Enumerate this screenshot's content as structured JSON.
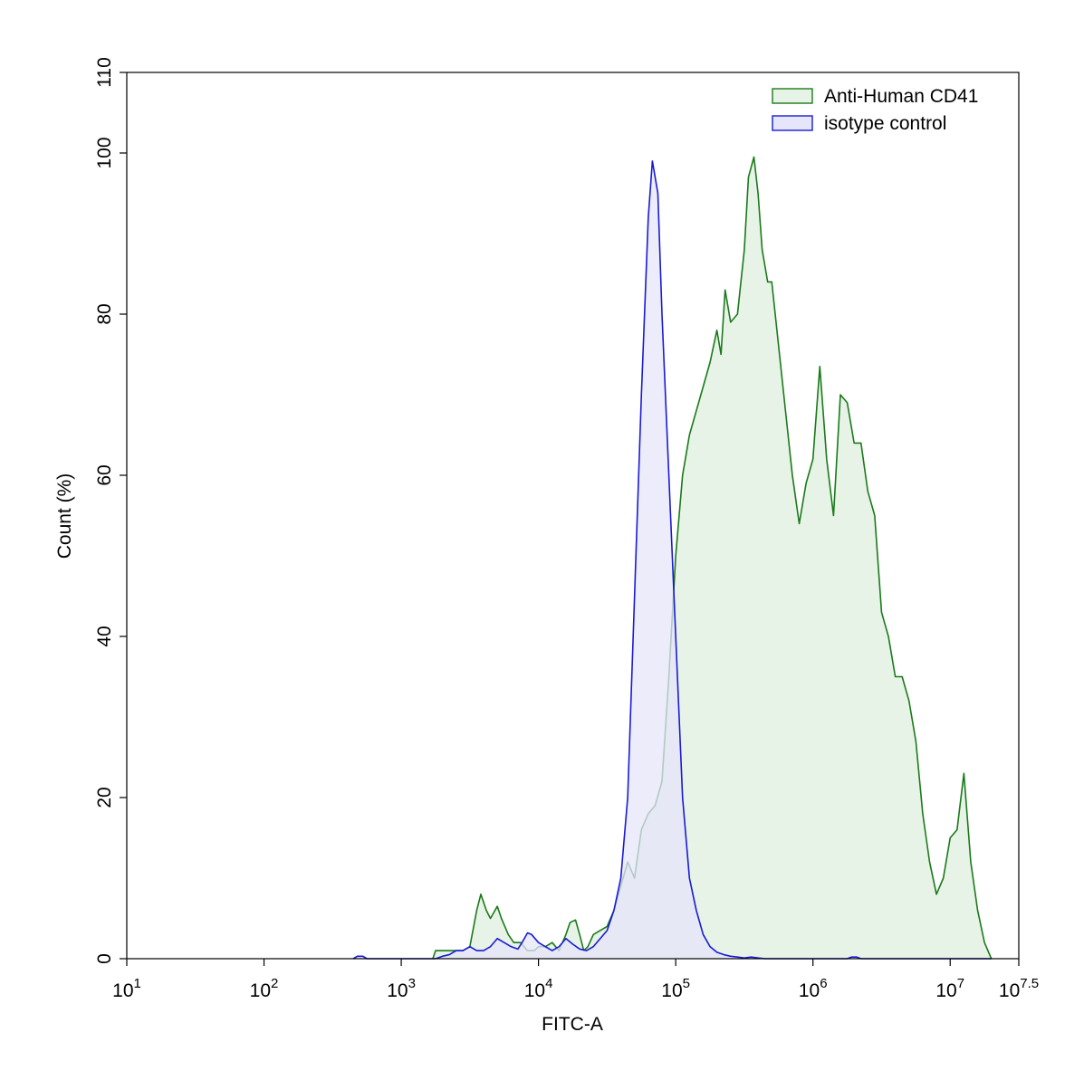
{
  "chart_data": {
    "type": "area",
    "xlabel": "FITC-A",
    "ylabel": "Count  (%)",
    "xscale": "log10",
    "xlim": [
      1,
      7.5
    ],
    "ylim": [
      0,
      110
    ],
    "x_ticks": [
      {
        "base": "10",
        "exp": "1",
        "value": 1
      },
      {
        "base": "10",
        "exp": "2",
        "value": 2
      },
      {
        "base": "10",
        "exp": "3",
        "value": 3
      },
      {
        "base": "10",
        "exp": "4",
        "value": 4
      },
      {
        "base": "10",
        "exp": "5",
        "value": 5
      },
      {
        "base": "10",
        "exp": "6",
        "value": 6
      },
      {
        "base": "10",
        "exp": "7",
        "value": 7
      },
      {
        "base": "10",
        "exp": "7.5",
        "value": 7.5
      }
    ],
    "y_ticks": [
      "0",
      "20",
      "40",
      "60",
      "80",
      "100",
      "110"
    ],
    "legend_position": "top-right",
    "grid": false,
    "series": [
      {
        "name": "Anti-Human CD41",
        "color": "#1a7a1a",
        "fill": "#e6f3e6",
        "points": [
          [
            3.23,
            0
          ],
          [
            3.25,
            1
          ],
          [
            3.3,
            1
          ],
          [
            3.35,
            1
          ],
          [
            3.4,
            1
          ],
          [
            3.45,
            1
          ],
          [
            3.5,
            1.5
          ],
          [
            3.55,
            6
          ],
          [
            3.58,
            8
          ],
          [
            3.62,
            6
          ],
          [
            3.65,
            5
          ],
          [
            3.7,
            6.5
          ],
          [
            3.73,
            5
          ],
          [
            3.78,
            3
          ],
          [
            3.82,
            2
          ],
          [
            3.87,
            2
          ],
          [
            3.92,
            1
          ],
          [
            3.97,
            1
          ],
          [
            4.0,
            1.5
          ],
          [
            4.05,
            1.5
          ],
          [
            4.1,
            2
          ],
          [
            4.15,
            1
          ],
          [
            4.2,
            3
          ],
          [
            4.23,
            4.5
          ],
          [
            4.27,
            4.8
          ],
          [
            4.3,
            3
          ],
          [
            4.33,
            1
          ],
          [
            4.36,
            1.5
          ],
          [
            4.4,
            3
          ],
          [
            4.45,
            3.5
          ],
          [
            4.5,
            4
          ],
          [
            4.55,
            6
          ],
          [
            4.6,
            9
          ],
          [
            4.65,
            12
          ],
          [
            4.7,
            10
          ],
          [
            4.75,
            16
          ],
          [
            4.8,
            18
          ],
          [
            4.85,
            19
          ],
          [
            4.9,
            22
          ],
          [
            4.95,
            35
          ],
          [
            5.0,
            50
          ],
          [
            5.05,
            60
          ],
          [
            5.1,
            65
          ],
          [
            5.15,
            68
          ],
          [
            5.2,
            71
          ],
          [
            5.25,
            74
          ],
          [
            5.3,
            78
          ],
          [
            5.33,
            75
          ],
          [
            5.36,
            83
          ],
          [
            5.4,
            79
          ],
          [
            5.45,
            80
          ],
          [
            5.5,
            88
          ],
          [
            5.53,
            97
          ],
          [
            5.57,
            99.5
          ],
          [
            5.6,
            95
          ],
          [
            5.63,
            88
          ],
          [
            5.67,
            84
          ],
          [
            5.7,
            84
          ],
          [
            5.75,
            76
          ],
          [
            5.8,
            68
          ],
          [
            5.85,
            60
          ],
          [
            5.9,
            54
          ],
          [
            5.95,
            59
          ],
          [
            6.0,
            62
          ],
          [
            6.05,
            73.5
          ],
          [
            6.1,
            62
          ],
          [
            6.15,
            55
          ],
          [
            6.2,
            70
          ],
          [
            6.25,
            69
          ],
          [
            6.3,
            64
          ],
          [
            6.35,
            64
          ],
          [
            6.4,
            58
          ],
          [
            6.45,
            55
          ],
          [
            6.5,
            43
          ],
          [
            6.55,
            40
          ],
          [
            6.6,
            35
          ],
          [
            6.65,
            35
          ],
          [
            6.7,
            32
          ],
          [
            6.75,
            27
          ],
          [
            6.8,
            18
          ],
          [
            6.85,
            12
          ],
          [
            6.9,
            8
          ],
          [
            6.95,
            10
          ],
          [
            7.0,
            15
          ],
          [
            7.05,
            16
          ],
          [
            7.1,
            23
          ],
          [
            7.15,
            12
          ],
          [
            7.2,
            6
          ],
          [
            7.25,
            2
          ],
          [
            7.3,
            0
          ]
        ]
      },
      {
        "name": "isotype control",
        "color": "#1a1ad6",
        "fill": "#e6e6fa",
        "points": [
          [
            2.65,
            0
          ],
          [
            2.68,
            0.3
          ],
          [
            2.72,
            0.3
          ],
          [
            2.75,
            0
          ],
          [
            3.25,
            0
          ],
          [
            3.3,
            0.3
          ],
          [
            3.35,
            0.5
          ],
          [
            3.4,
            1
          ],
          [
            3.45,
            1
          ],
          [
            3.5,
            1.5
          ],
          [
            3.55,
            1
          ],
          [
            3.6,
            1
          ],
          [
            3.65,
            1.5
          ],
          [
            3.7,
            2.5
          ],
          [
            3.75,
            2
          ],
          [
            3.8,
            1.5
          ],
          [
            3.85,
            1.2
          ],
          [
            3.88,
            2
          ],
          [
            3.92,
            3.2
          ],
          [
            3.95,
            3
          ],
          [
            4.0,
            2
          ],
          [
            4.05,
            1.5
          ],
          [
            4.1,
            1
          ],
          [
            4.15,
            1.5
          ],
          [
            4.2,
            2.5
          ],
          [
            4.25,
            1.8
          ],
          [
            4.3,
            1.2
          ],
          [
            4.35,
            1
          ],
          [
            4.4,
            1.5
          ],
          [
            4.45,
            2.5
          ],
          [
            4.5,
            3.5
          ],
          [
            4.55,
            6
          ],
          [
            4.6,
            10
          ],
          [
            4.65,
            20
          ],
          [
            4.7,
            45
          ],
          [
            4.75,
            70
          ],
          [
            4.8,
            92
          ],
          [
            4.83,
            99
          ],
          [
            4.87,
            95
          ],
          [
            4.9,
            80
          ],
          [
            4.95,
            60
          ],
          [
            5.0,
            40
          ],
          [
            5.05,
            20
          ],
          [
            5.1,
            10
          ],
          [
            5.15,
            6
          ],
          [
            5.2,
            3
          ],
          [
            5.25,
            1.5
          ],
          [
            5.3,
            0.8
          ],
          [
            5.35,
            0.5
          ],
          [
            5.4,
            0.3
          ],
          [
            5.45,
            0.2
          ],
          [
            5.5,
            0.1
          ],
          [
            5.55,
            0.2
          ],
          [
            5.6,
            0.1
          ],
          [
            5.65,
            0
          ],
          [
            6.25,
            0
          ],
          [
            6.28,
            0.2
          ],
          [
            6.32,
            0.2
          ],
          [
            6.35,
            0
          ],
          [
            7.3,
            0
          ]
        ]
      }
    ]
  }
}
